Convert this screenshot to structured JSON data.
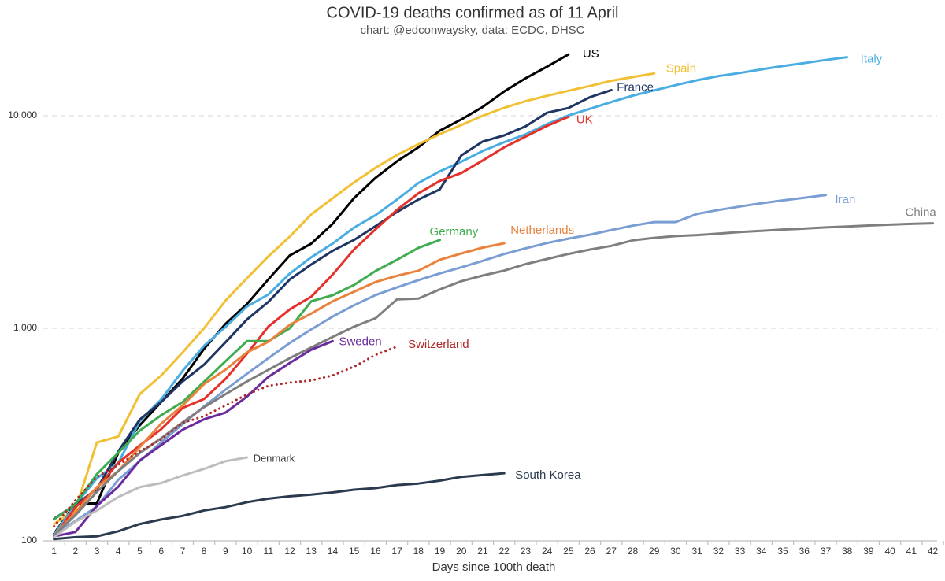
{
  "chart_data": {
    "type": "line",
    "title": "COVID-19 deaths confirmed as of 11 April",
    "subtitle": "chart: @edconwaysky, data: ECDC, DHSC",
    "x_label": "Days since 100th death",
    "log_y": true,
    "grid": true,
    "x": [
      1,
      2,
      3,
      4,
      5,
      6,
      7,
      8,
      9,
      10,
      11,
      12,
      13,
      14,
      15,
      16,
      17,
      18,
      19,
      20,
      21,
      22,
      23,
      24,
      25,
      26,
      27,
      28,
      29,
      30,
      31,
      32,
      33,
      34,
      35,
      36,
      37,
      38,
      39,
      40,
      41,
      42
    ],
    "xlim": [
      0.5,
      42.2
    ],
    "xticks": [
      1,
      2,
      3,
      4,
      5,
      6,
      7,
      8,
      9,
      10,
      11,
      12,
      13,
      14,
      15,
      16,
      17,
      18,
      19,
      20,
      21,
      22,
      23,
      24,
      25,
      26,
      27,
      28,
      29,
      30,
      31,
      32,
      33,
      34,
      35,
      36,
      37,
      38,
      39,
      40,
      41,
      42
    ],
    "ylim": [
      100,
      22000
    ],
    "yticks": [
      100,
      {
        "value": 1000,
        "label": "1,000"
      },
      {
        "value": 10000,
        "label": "10,000"
      }
    ],
    "series": [
      {
        "name": "US",
        "color": "#000000",
        "values": [
          108,
          150,
          150,
          260,
          350,
          450,
          580,
          800,
          1050,
          1300,
          1700,
          2200,
          2500,
          3100,
          4100,
          5100,
          6100,
          7100,
          8500,
          9600,
          11000,
          13000,
          15000,
          17000,
          19400,
          null,
          null,
          null,
          null,
          null,
          null,
          null,
          null,
          null,
          null,
          null,
          null,
          null,
          null,
          null,
          null,
          null
        ]
      },
      {
        "name": "Spain",
        "color": "#f2c034",
        "values": [
          120,
          140,
          290,
          310,
          490,
          600,
          770,
          1000,
          1350,
          1720,
          2180,
          2700,
          3430,
          4090,
          4860,
          5690,
          6530,
          7340,
          8190,
          9050,
          10000,
          10900,
          11700,
          12400,
          13100,
          13800,
          14600,
          15200,
          15800,
          null,
          null,
          null,
          null,
          null,
          null,
          null,
          null,
          null,
          null,
          null,
          null,
          null
        ]
      },
      {
        "name": "Italy",
        "color": "#4aade2",
        "values": [
          107,
          148,
          197,
          233,
          366,
          463,
          631,
          827,
          1016,
          1266,
          1441,
          1809,
          2158,
          2503,
          2978,
          3405,
          4032,
          4825,
          5476,
          6077,
          6820,
          7503,
          8165,
          9134,
          10023,
          10779,
          11591,
          12428,
          13155,
          13915,
          14681,
          15362,
          15887,
          16523,
          17127,
          17669,
          18279,
          18849,
          null,
          null,
          null,
          null
        ]
      },
      {
        "name": "France",
        "color": "#1f3563",
        "values": [
          127,
          148,
          175,
          264,
          372,
          450,
          562,
          674,
          860,
          1100,
          1331,
          1696,
          1995,
          2314,
          2606,
          3024,
          3523,
          4032,
          4503,
          6507,
          7560,
          8078,
          8911,
          10328,
          10869,
          12210,
          13197,
          null,
          null,
          null,
          null,
          null,
          null,
          null,
          null,
          null,
          null,
          null,
          null,
          null,
          null,
          null
        ]
      },
      {
        "name": "UK",
        "color": "#e6312a",
        "values": [
          104,
          144,
          177,
          233,
          281,
          335,
          422,
          465,
          578,
          759,
          1019,
          1228,
          1408,
          1789,
          2352,
          2921,
          3605,
          4313,
          4934,
          5373,
          6159,
          7097,
          7978,
          8958,
          9875,
          null,
          null,
          null,
          null,
          null,
          null,
          null,
          null,
          null,
          null,
          null,
          null,
          null,
          null,
          null,
          null,
          null
        ]
      },
      {
        "name": "Germany",
        "color": "#3fad4f",
        "values": [
          126,
          149,
          206,
          260,
          330,
          390,
          450,
          560,
          700,
          870,
          870,
          1000,
          1340,
          1430,
          1600,
          1860,
          2100,
          2390,
          2600,
          null,
          null,
          null,
          null,
          null,
          null,
          null,
          null,
          null,
          null,
          null,
          null,
          null,
          null,
          null,
          null,
          null,
          null,
          null,
          null,
          null,
          null,
          null
        ]
      },
      {
        "name": "Netherlands",
        "color": "#e8823c",
        "values": [
          106,
          136,
          179,
          213,
          276,
          356,
          434,
          546,
          639,
          771,
          864,
          1039,
          1173,
          1339,
          1487,
          1651,
          1766,
          1867,
          2101,
          2248,
          2396,
          2511,
          null,
          null,
          null,
          null,
          null,
          null,
          null,
          null,
          null,
          null,
          null,
          null,
          null,
          null,
          null,
          null,
          null,
          null,
          null,
          null
        ]
      },
      {
        "name": "Iran",
        "color": "#7a9dd3",
        "values": [
          107,
          124,
          145,
          194,
          237,
          291,
          354,
          429,
          514,
          611,
          724,
          853,
          988,
          1135,
          1284,
          1433,
          1556,
          1685,
          1812,
          1934,
          2077,
          2234,
          2378,
          2517,
          2640,
          2757,
          2898,
          3036,
          3160,
          3160,
          3452,
          3603,
          3739,
          3872,
          3993,
          4110,
          4232,
          null,
          null,
          null,
          null,
          null
        ]
      },
      {
        "name": "China",
        "color": "#7f7f7f",
        "values": [
          106,
          132,
          170,
          213,
          259,
          304,
          361,
          425,
          490,
          562,
          638,
          724,
          813,
          910,
          1018,
          1115,
          1367,
          1380,
          1523,
          1665,
          1770,
          1868,
          2004,
          2118,
          2236,
          2345,
          2442,
          2592,
          2663,
          2715,
          2744,
          2788,
          2835,
          2870,
          2912,
          2943,
          2981,
          3012,
          3042,
          3070,
          3097,
          3119
        ]
      },
      {
        "name": "Sweden",
        "color": "#6a2c9d",
        "values": [
          105,
          110,
          146,
          180,
          239,
          282,
          333,
          373,
          401,
          477,
          591,
          687,
          793,
          870,
          null,
          null,
          null,
          null,
          null,
          null,
          null,
          null,
          null,
          null,
          null,
          null,
          null,
          null,
          null,
          null,
          null,
          null,
          null,
          null,
          null,
          null,
          null,
          null,
          null,
          null,
          null,
          null
        ]
      },
      {
        "name": "Switzerland",
        "color": "#b02525",
        "style": "dotted",
        "values": [
          117,
          155,
          200,
          228,
          264,
          300,
          359,
          386,
          433,
          488,
          536,
          555,
          568,
          600,
          660,
          750,
          820,
          null,
          null,
          null,
          null,
          null,
          null,
          null,
          null,
          null,
          null,
          null,
          null,
          null,
          null,
          null,
          null,
          null,
          null,
          null,
          null,
          null,
          null,
          null,
          null,
          null
        ]
      },
      {
        "name": "Denmark",
        "color": "#bdbdbd",
        "label_color": "#333333",
        "values": [
          104,
          123,
          139,
          161,
          179,
          187,
          203,
          218,
          237,
          247,
          null,
          null,
          null,
          null,
          null,
          null,
          null,
          null,
          null,
          null,
          null,
          null,
          null,
          null,
          null,
          null,
          null,
          null,
          null,
          null,
          null,
          null,
          null,
          null,
          null,
          null,
          null,
          null,
          null,
          null,
          null,
          null
        ]
      },
      {
        "name": "South Korea",
        "color": "#2b3a4e",
        "values": [
          102,
          104,
          105,
          111,
          120,
          126,
          131,
          139,
          144,
          152,
          158,
          162,
          165,
          169,
          174,
          177,
          183,
          186,
          192,
          200,
          204,
          208,
          null,
          null,
          null,
          null,
          null,
          null,
          null,
          null,
          null,
          null,
          null,
          null,
          null,
          null,
          null,
          null,
          null,
          null,
          null,
          null
        ]
      }
    ]
  }
}
